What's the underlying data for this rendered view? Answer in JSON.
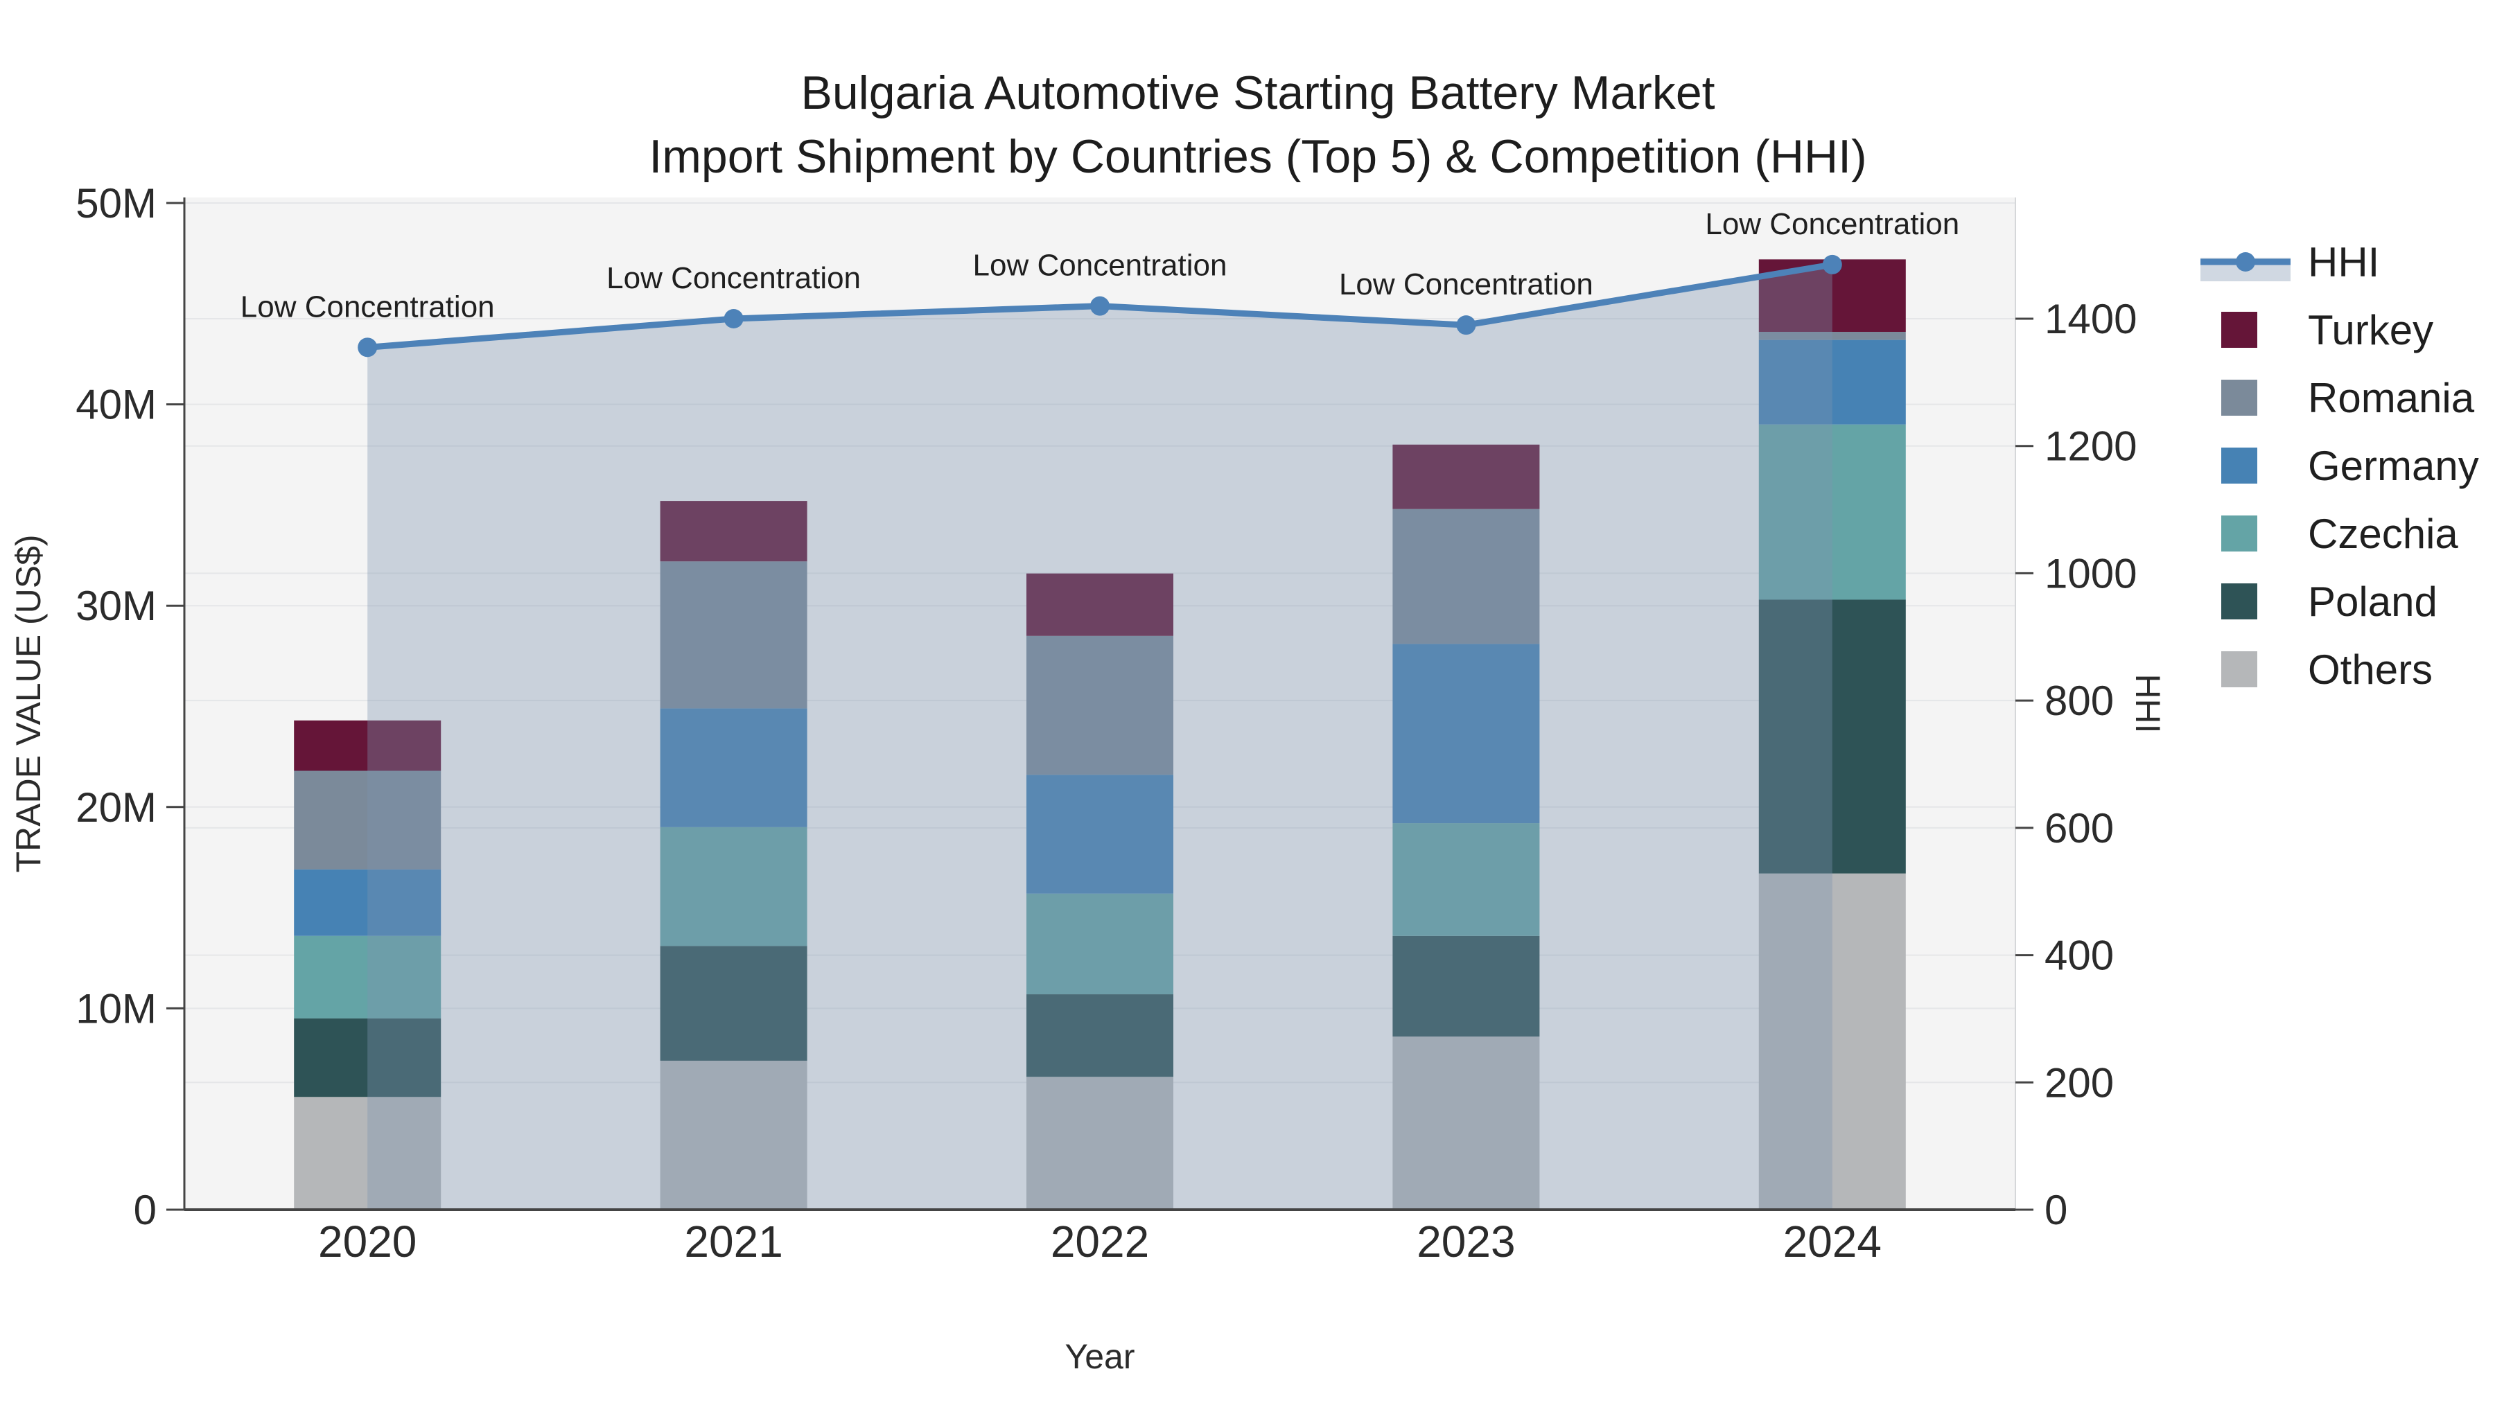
{
  "title": {
    "line1": "Bulgaria Automotive Starting Battery Market",
    "line2": "Import Shipment by Countries (Top 5) & Competition (HHI)"
  },
  "axes": {
    "x": {
      "title": "Year",
      "tick_labels": [
        "2020",
        "2021",
        "2022",
        "2023",
        "2024"
      ]
    },
    "y_left": {
      "title": "TRADE VALUE (US$)",
      "tick_labels": [
        "0",
        "10M",
        "20M",
        "30M",
        "40M",
        "50M"
      ],
      "tick_values": [
        0,
        10,
        20,
        30,
        40,
        50
      ],
      "unit": "M US$"
    },
    "y_right": {
      "title": "HHI",
      "tick_labels": [
        "0",
        "200",
        "400",
        "600",
        "800",
        "1000",
        "1200",
        "1400"
      ],
      "tick_values": [
        0,
        200,
        400,
        600,
        800,
        1000,
        1200,
        1400
      ]
    }
  },
  "chart_data": {
    "type": "bar",
    "subtype": "stacked-bar-with-line-overlay",
    "categories": [
      "2020",
      "2021",
      "2022",
      "2023",
      "2024"
    ],
    "bar_unit": "M US$ (trade value)",
    "series": [
      {
        "name": "Others",
        "color": "#b5b7b9",
        "values": [
          5.6,
          7.4,
          6.6,
          8.6,
          16.7
        ]
      },
      {
        "name": "Poland",
        "color": "#2e5356",
        "values": [
          3.9,
          5.7,
          4.1,
          5.0,
          13.6
        ]
      },
      {
        "name": "Czechia",
        "color": "#64a4a6",
        "values": [
          4.1,
          5.9,
          5.0,
          5.6,
          8.7
        ]
      },
      {
        "name": "Germany",
        "color": "#4682b4",
        "values": [
          3.3,
          5.9,
          5.9,
          8.9,
          4.2
        ]
      },
      {
        "name": "Romania",
        "color": "#7b8a9a",
        "values": [
          4.9,
          7.3,
          6.9,
          6.7,
          0.4
        ]
      },
      {
        "name": "Turkey",
        "color": "#651538",
        "values": [
          2.5,
          3.0,
          3.1,
          3.2,
          3.6
        ]
      }
    ],
    "bar_totals": [
      24.3,
      35.2,
      31.6,
      38.0,
      47.2
    ],
    "line": {
      "name": "HHI",
      "color": "#4d82b8",
      "area_fill": "rgba(126,147,174,0.36)",
      "values": [
        1355,
        1400,
        1420,
        1390,
        1485
      ],
      "axis": "y_right"
    },
    "annotations": [
      "Low Concentration",
      "Low Concentration",
      "Low Concentration",
      "Low Concentration",
      "Low Concentration"
    ],
    "ylim_left": [
      0,
      50
    ],
    "ylim_right": [
      0,
      1580
    ],
    "grid": true,
    "legend_position": "right",
    "plot_bg": "#f4f4f4",
    "grid_color": "#e5e6e8",
    "axis_line_color": "#444444"
  },
  "legend": {
    "items": [
      {
        "label": "HHI",
        "kind": "line",
        "color": "#4d82b8",
        "band": "rgba(126,147,174,0.36)"
      },
      {
        "label": "Turkey",
        "kind": "swatch",
        "color": "#651538"
      },
      {
        "label": "Romania",
        "kind": "swatch",
        "color": "#7b8a9a"
      },
      {
        "label": "Germany",
        "kind": "swatch",
        "color": "#4682b4"
      },
      {
        "label": "Czechia",
        "kind": "swatch",
        "color": "#64a4a6"
      },
      {
        "label": "Poland",
        "kind": "swatch",
        "color": "#2e5356"
      },
      {
        "label": "Others",
        "kind": "swatch",
        "color": "#b5b7b9"
      }
    ]
  }
}
